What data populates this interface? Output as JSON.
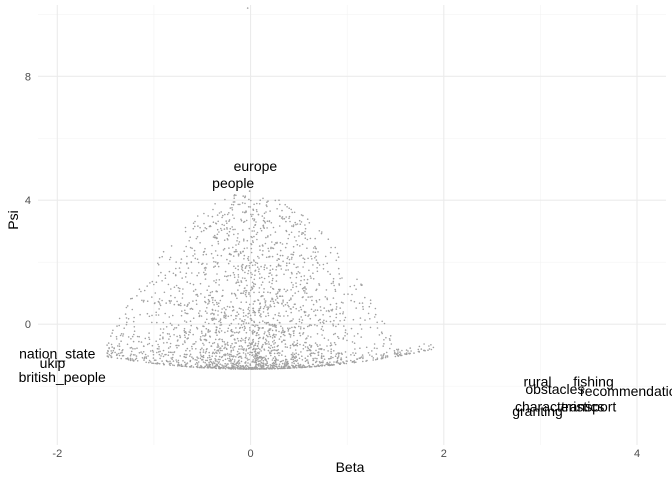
{
  "chart_data": {
    "type": "scatter",
    "title": "",
    "xlabel": "Beta",
    "ylabel": "Psi",
    "xlim": [
      -2.2,
      4.3
    ],
    "ylim": [
      -3.9,
      10.3
    ],
    "x_ticks": [
      -2,
      0,
      2,
      4
    ],
    "x_tick_labels": [
      "-2",
      "0",
      "2",
      "4"
    ],
    "y_ticks": [
      0,
      4,
      8
    ],
    "y_tick_labels": [
      "0",
      "4",
      "8"
    ],
    "grid": true,
    "legend": "none",
    "point_color": "#a0a0a0",
    "labeled_points": [
      {
        "label": "europe",
        "x": 0.05,
        "y": 5.1
      },
      {
        "label": "people",
        "x": -0.18,
        "y": 4.55
      },
      {
        "label": "nation_state",
        "x": -2.0,
        "y": -0.95
      },
      {
        "label": "ukip",
        "x": -2.05,
        "y": -1.25
      },
      {
        "label": "british_people",
        "x": -1.95,
        "y": -1.7
      },
      {
        "label": "rural",
        "x": 2.97,
        "y": -1.85
      },
      {
        "label": "fishing",
        "x": 3.55,
        "y": -1.85
      },
      {
        "label": "obstacles",
        "x": 3.15,
        "y": -2.1
      },
      {
        "label": "recommendation",
        "x": 3.95,
        "y": -2.15
      },
      {
        "label": "characteristics",
        "x": 3.2,
        "y": -2.65
      },
      {
        "label": "transport",
        "x": 3.5,
        "y": -2.65
      },
      {
        "label": "granting",
        "x": 2.97,
        "y": -2.8
      }
    ],
    "outlier_points": [
      {
        "x": -0.03,
        "y": 10.2
      }
    ]
  }
}
